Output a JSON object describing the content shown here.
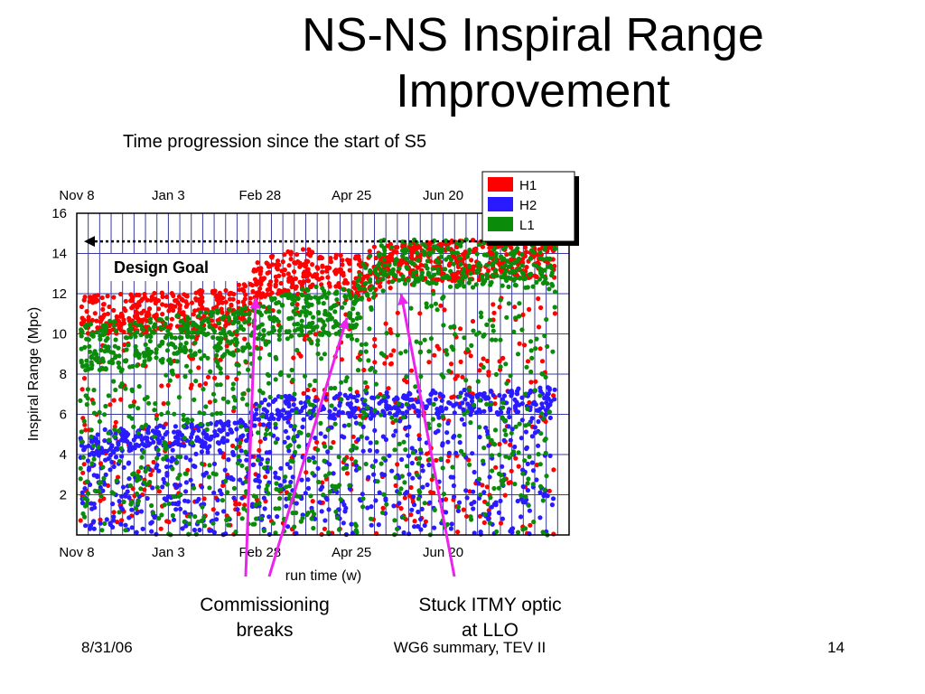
{
  "slide": {
    "title_line1": "NS-NS Inspiral Range",
    "title_line2": "Improvement",
    "subtitle": "Time progression since the start of S5"
  },
  "footer": {
    "date": "8/31/06",
    "center": "WG6 summary, TEV II",
    "page": "14"
  },
  "callouts": {
    "commissioning_line1": "Commissioning",
    "commissioning_line2": "breaks",
    "stuck_line1": "Stuck ITMY optic",
    "stuck_line2": "at LLO"
  },
  "colors": {
    "H1": "#ff0000",
    "H2": "#2a1aff",
    "L1": "#0a8c0a",
    "arrows": "#ee22ee",
    "grid": "#3a3aa0"
  },
  "chart_data": {
    "type": "scatter",
    "xlabel": "run time (w)",
    "ylabel": "Inspiral Range (Mpc)",
    "x_tick_labels": [
      "Nov 8",
      "Jan 3",
      "Feb 28",
      "Apr 25",
      "Jun 20"
    ],
    "x_ticks_weeks": [
      0,
      8,
      16,
      24,
      32
    ],
    "xlim": [
      0,
      43
    ],
    "ylim": [
      0,
      16
    ],
    "y_ticks": [
      2,
      4,
      6,
      8,
      10,
      12,
      14,
      16
    ],
    "grid": true,
    "legend_position": "top-right",
    "design_goal": {
      "label": "Design Goal",
      "value": 14.6
    },
    "series": [
      {
        "name": "H1",
        "band_x": [
          0,
          6,
          12,
          15,
          16,
          20,
          24,
          26,
          30,
          43
        ],
        "band_y": [
          11.0,
          11.0,
          11.2,
          11.6,
          12.8,
          13.3,
          12.8,
          13.4,
          13.6,
          13.8
        ],
        "spread": 1.0,
        "dropout_fraction": 0.35
      },
      {
        "name": "H2",
        "band_x": [
          0,
          12,
          15,
          16,
          43
        ],
        "band_y": [
          4.6,
          5.0,
          5.3,
          6.3,
          6.8
        ],
        "spread": 0.6,
        "dropout_fraction": 0.55
      },
      {
        "name": "L1",
        "band_x": [
          0,
          8,
          15,
          16,
          20,
          24,
          26,
          43
        ],
        "band_y": [
          9.3,
          9.7,
          10.2,
          10.5,
          11.2,
          11.0,
          13.5,
          13.5
        ],
        "spread": 1.2,
        "dropout_fraction": 0.5
      }
    ],
    "annotations": [
      {
        "text": "Commissioning breaks",
        "points_to_x": [
          15,
          22
        ]
      },
      {
        "text": "Stuck ITMY optic at LLO",
        "points_to_x": [
          26
        ]
      }
    ]
  }
}
